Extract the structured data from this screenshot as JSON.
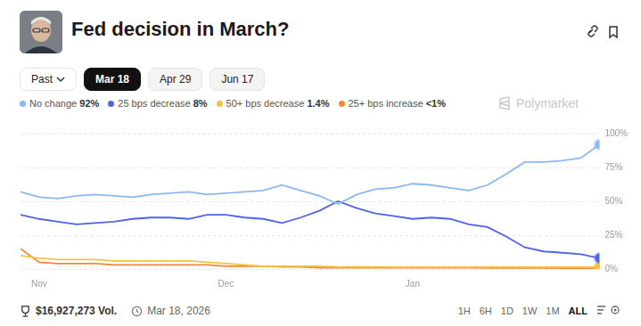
{
  "title": "Fed decision in March?",
  "tabs": [
    "Past",
    "Mar 18",
    "Apr 29",
    "Jun 17"
  ],
  "active_tab": "Mar 18",
  "watermark": "Polymarket",
  "chart_data": {
    "type": "line",
    "legend": "top",
    "grid": true,
    "categories": [
      null,
      "Nov",
      null,
      null,
      null,
      null,
      null,
      null,
      null,
      null,
      null,
      "Dec",
      null,
      null,
      null,
      null,
      null,
      null,
      null,
      null,
      null,
      "Jan",
      null,
      null,
      null,
      null,
      null,
      null,
      null,
      null,
      null,
      null
    ],
    "series": [
      {
        "name": "No change",
        "label": "92%",
        "color": "#8ab8f2",
        "values": [
          57,
          53,
          52,
          54,
          55,
          54,
          53,
          55,
          56,
          57,
          55,
          56,
          57,
          58,
          62,
          58,
          54,
          48,
          55,
          59,
          60,
          63,
          62,
          60,
          58,
          62,
          70,
          79,
          79,
          80,
          82,
          92
        ]
      },
      {
        "name": "25 bps decrease",
        "label": "8%",
        "color": "#4d63e8",
        "values": [
          40,
          37,
          35,
          33,
          34,
          35,
          37,
          38,
          38,
          37,
          40,
          40,
          38,
          37,
          34,
          38,
          43,
          50,
          45,
          41,
          39,
          37,
          38,
          37,
          33,
          31,
          24,
          16,
          13,
          12,
          11,
          8
        ]
      },
      {
        "name": "50+ bps decrease",
        "label": "1.4%",
        "color": "#f5c242",
        "values": [
          10,
          8,
          7,
          7,
          7,
          6,
          6,
          6,
          6,
          6,
          5,
          4,
          3,
          2,
          2,
          2,
          2,
          1.5,
          1.5,
          1.5,
          1.4,
          1.4,
          1.4,
          1.4,
          1.4,
          1.4,
          1.4,
          1.4,
          1.4,
          1.4,
          1.4,
          1.4
        ]
      },
      {
        "name": "25+ bps increase",
        "label": "<1%",
        "color": "#f2863a",
        "values": [
          15,
          5,
          4,
          4,
          4,
          3,
          3,
          3,
          3,
          3,
          3,
          2,
          2,
          2,
          1.5,
          1.5,
          1,
          1,
          1,
          1,
          1,
          1,
          1,
          1,
          1,
          0.8,
          0.8,
          0.8,
          0.7,
          0.6,
          0.6,
          0.5
        ]
      }
    ],
    "ylim": [
      0,
      100
    ],
    "yticks": [
      {
        "value": 0,
        "label": "0%"
      },
      {
        "value": 25,
        "label": "25%"
      },
      {
        "value": 50,
        "label": "50%"
      },
      {
        "value": 75,
        "label": "75%"
      },
      {
        "value": 100,
        "label": "100%"
      }
    ]
  },
  "footer": {
    "volume": "$16,927,273 Vol.",
    "date": "Mar 18, 2026",
    "ranges": [
      "1H",
      "6H",
      "1D",
      "1W",
      "1M",
      "ALL"
    ],
    "active_range": "ALL"
  }
}
